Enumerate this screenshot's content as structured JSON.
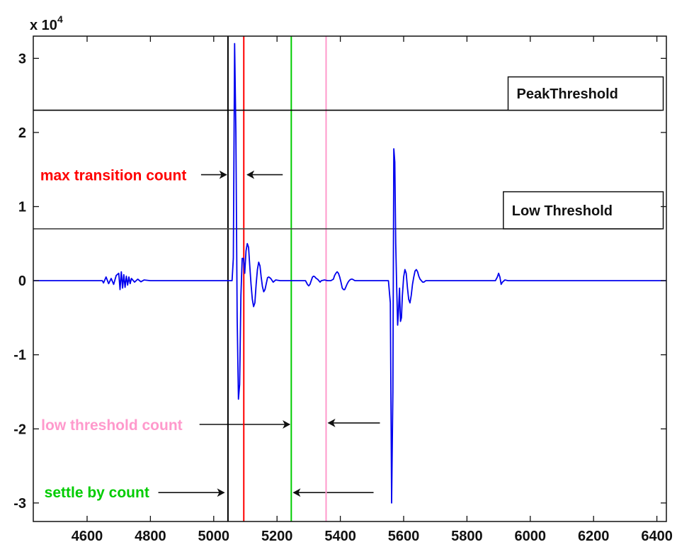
{
  "chart_data": {
    "type": "line",
    "title": "",
    "xlabel": "",
    "ylabel": "",
    "y_exponent_label": "x 10",
    "y_exponent_power": "4",
    "xlim": [
      4430,
      6430
    ],
    "ylim": [
      -3.25,
      3.3
    ],
    "xticks": [
      4600,
      4800,
      5000,
      5200,
      5400,
      5600,
      5800,
      6000,
      6200,
      6400
    ],
    "yticks": [
      3,
      2,
      1,
      0,
      -1,
      -2,
      -3
    ],
    "grid": false,
    "series": [
      {
        "color": "#0000ee",
        "x": [
          4430,
          4648,
          4652,
          4660,
          4668,
          4676,
          4684,
          4692,
          4700,
          4704,
          4708,
          4712,
          4716,
          4720,
          4724,
          4728,
          4732,
          4736,
          4740,
          4750,
          4760,
          4770,
          4780,
          4800,
          4840,
          5040,
          5058,
          5062,
          5066,
          5070,
          5074,
          5078,
          5082,
          5086,
          5090,
          5094,
          5098,
          5102,
          5106,
          5110,
          5114,
          5118,
          5122,
          5126,
          5130,
          5134,
          5138,
          5142,
          5146,
          5150,
          5154,
          5158,
          5162,
          5166,
          5170,
          5174,
          5180,
          5188,
          5196,
          5210,
          5230,
          5260,
          5280,
          5290,
          5296,
          5300,
          5304,
          5308,
          5312,
          5316,
          5320,
          5324,
          5328,
          5332,
          5336,
          5340,
          5350,
          5360,
          5370,
          5378,
          5382,
          5386,
          5390,
          5394,
          5398,
          5402,
          5406,
          5410,
          5414,
          5418,
          5422,
          5426,
          5430,
          5434,
          5438,
          5446,
          5460,
          5480,
          5500,
          5520,
          5540,
          5552,
          5558,
          5562,
          5566,
          5569,
          5572,
          5575,
          5578,
          5581,
          5584,
          5587,
          5590,
          5593,
          5596,
          5600,
          5604,
          5608,
          5612,
          5616,
          5620,
          5624,
          5628,
          5632,
          5636,
          5640,
          5644,
          5648,
          5652,
          5656,
          5660,
          5664,
          5670,
          5680,
          5700,
          5750,
          5800,
          5850,
          5890,
          5896,
          5900,
          5904,
          5908,
          5912,
          5920,
          5930,
          5960,
          6000,
          6100,
          6200,
          6300,
          6430
        ],
        "y": [
          0,
          0,
          -0.03,
          0.05,
          -0.04,
          0.03,
          -0.05,
          0.07,
          0.1,
          -0.12,
          0.12,
          -0.1,
          0.08,
          -0.09,
          0.06,
          -0.06,
          0.05,
          -0.04,
          0.03,
          -0.02,
          0.02,
          -0.015,
          0.01,
          0,
          0,
          0,
          0,
          0.3,
          3.2,
          2.0,
          -0.5,
          -1.6,
          -1.4,
          -0.2,
          0.3,
          0.3,
          0.1,
          0.4,
          0.5,
          0.45,
          0.2,
          -0.05,
          -0.25,
          -0.35,
          -0.3,
          -0.05,
          0.15,
          0.25,
          0.2,
          0.05,
          -0.08,
          -0.15,
          -0.12,
          -0.04,
          0.04,
          0.05,
          0.03,
          -0.02,
          0.01,
          0,
          0,
          0,
          0,
          0,
          -0.05,
          -0.07,
          -0.05,
          0,
          0.05,
          0.06,
          0.05,
          0.03,
          0.02,
          0.0,
          -0.02,
          0.0,
          0.01,
          0,
          0,
          0.02,
          0.07,
          0.1,
          0.12,
          0.1,
          0.05,
          -0.02,
          -0.1,
          -0.12,
          -0.12,
          -0.08,
          -0.04,
          -0.01,
          0.01,
          0.02,
          0.02,
          0,
          0,
          0,
          0,
          0,
          0,
          0,
          -0.3,
          -3.0,
          -1.5,
          1.78,
          1.6,
          0.5,
          -0.1,
          -0.6,
          -0.4,
          -0.1,
          -0.55,
          -0.5,
          -0.2,
          0.05,
          0.15,
          0.1,
          -0.1,
          -0.25,
          -0.3,
          -0.2,
          -0.05,
          0.05,
          0.13,
          0.15,
          0.12,
          0.06,
          0.02,
          0,
          -0.02,
          -0.02,
          0,
          0,
          0,
          0,
          0,
          0,
          0,
          0.05,
          0.1,
          0.05,
          -0.05,
          -0.02,
          0.01,
          0,
          0,
          0,
          0,
          0,
          0,
          0
        ]
      }
    ],
    "reference_lines": [
      {
        "axis": "x",
        "value": 5045,
        "color": "#000000"
      },
      {
        "axis": "x",
        "value": 5095,
        "color": "#ff0000"
      },
      {
        "axis": "x",
        "value": 5245,
        "color": "#00cc00"
      },
      {
        "axis": "x",
        "value": 5355,
        "color": "#ff99cc"
      },
      {
        "axis": "y",
        "value": 2.3,
        "color": "#000000"
      },
      {
        "axis": "y",
        "value": 0.7,
        "color": "#444444"
      }
    ],
    "threshold_boxes": [
      {
        "label": "PeakThreshold",
        "x0": 5930,
        "x1": 6420,
        "y0": 2.3,
        "y1": 2.75
      },
      {
        "label": "Low Threshold",
        "x0": 5915,
        "x1": 6420,
        "y0": 0.7,
        "y1": 1.2
      }
    ],
    "annotations": [
      {
        "text": "max transition count",
        "color": "#ff0000",
        "text_x": 4452,
        "text_y": 1.43,
        "arrows": [
          {
            "from": [
              4960,
              1.43
            ],
            "to": [
              5040,
              1.43
            ]
          },
          {
            "from": [
              5218,
              1.43
            ],
            "to": [
              5106,
              1.43
            ]
          }
        ]
      },
      {
        "text": "low threshold count",
        "color": "#ff99cc",
        "text_x": 4455,
        "text_y": -1.94,
        "arrows": [
          {
            "from": [
              4955,
              -1.94
            ],
            "to": [
              5240,
              -1.94
            ]
          },
          {
            "from": [
              5525,
              -1.92
            ],
            "to": [
              5362,
              -1.92
            ]
          }
        ]
      },
      {
        "text": "settle by count",
        "color": "#00cc00",
        "text_x": 4465,
        "text_y": -2.85,
        "arrows": [
          {
            "from": [
              4825,
              -2.86
            ],
            "to": [
              5033,
              -2.86
            ]
          },
          {
            "from": [
              5505,
              -2.86
            ],
            "to": [
              5252,
              -2.86
            ]
          }
        ]
      }
    ]
  }
}
